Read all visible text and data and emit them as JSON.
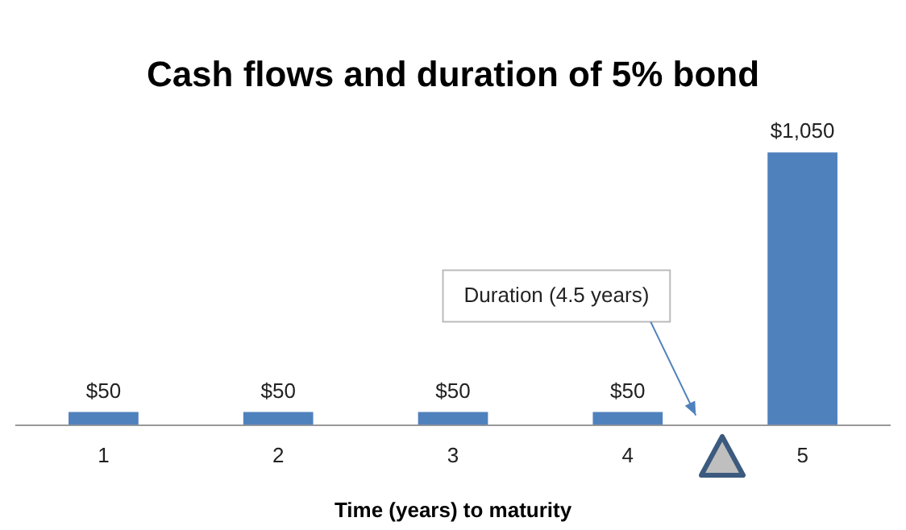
{
  "chart_data": {
    "type": "bar",
    "title": "Cash flows and duration of 5% bond",
    "xlabel": "Time (years) to maturity",
    "categories": [
      "1",
      "2",
      "3",
      "4",
      "5"
    ],
    "values": [
      50,
      50,
      50,
      50,
      1050
    ],
    "value_labels": [
      "$50",
      "$50",
      "$50",
      "$50",
      "$1,050"
    ],
    "color": "#4f81bd",
    "annotations": [
      "Duration (4.5 years)"
    ],
    "grid": false,
    "legend": false
  }
}
